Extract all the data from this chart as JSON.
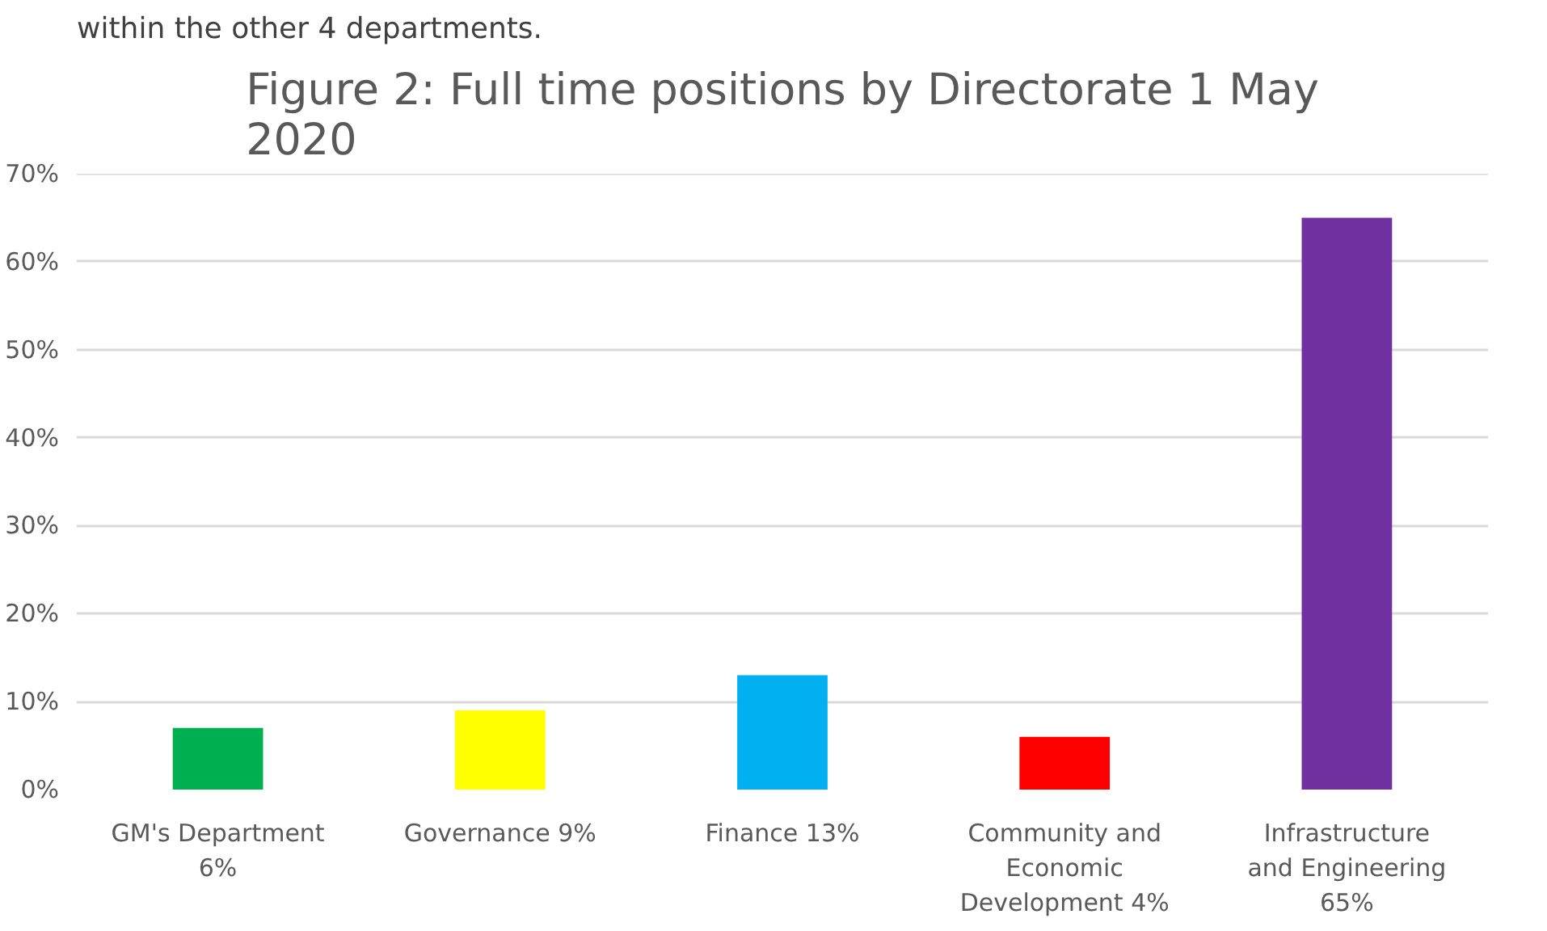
{
  "chart_data": {
    "type": "bar",
    "title": "Figure 2: Full time positions by Directorate 1 May 2020",
    "categories": [
      "GM's Department 6%",
      "Governance 9%",
      "Finance 13%",
      "Community and Economic Development 4%",
      "Infrastructure and Engineering 65%"
    ],
    "values": [
      7,
      9,
      13,
      6,
      65
    ],
    "colors": [
      "#00b050",
      "#ffff00",
      "#00b0f0",
      "#ff0000",
      "#7030a0"
    ],
    "ylim": [
      0,
      70
    ],
    "yticks": [
      {
        "value": 0,
        "label": "0%"
      },
      {
        "value": 10,
        "label": "10%"
      },
      {
        "value": 20,
        "label": "20%"
      },
      {
        "value": 30,
        "label": "30%"
      },
      {
        "value": 40,
        "label": "40%"
      },
      {
        "value": 50,
        "label": "50%"
      },
      {
        "value": 60,
        "label": "60%"
      },
      {
        "value": 70,
        "label": "70%"
      }
    ],
    "grid": "y",
    "annotations": [
      "within the other 4 departments."
    ]
  }
}
